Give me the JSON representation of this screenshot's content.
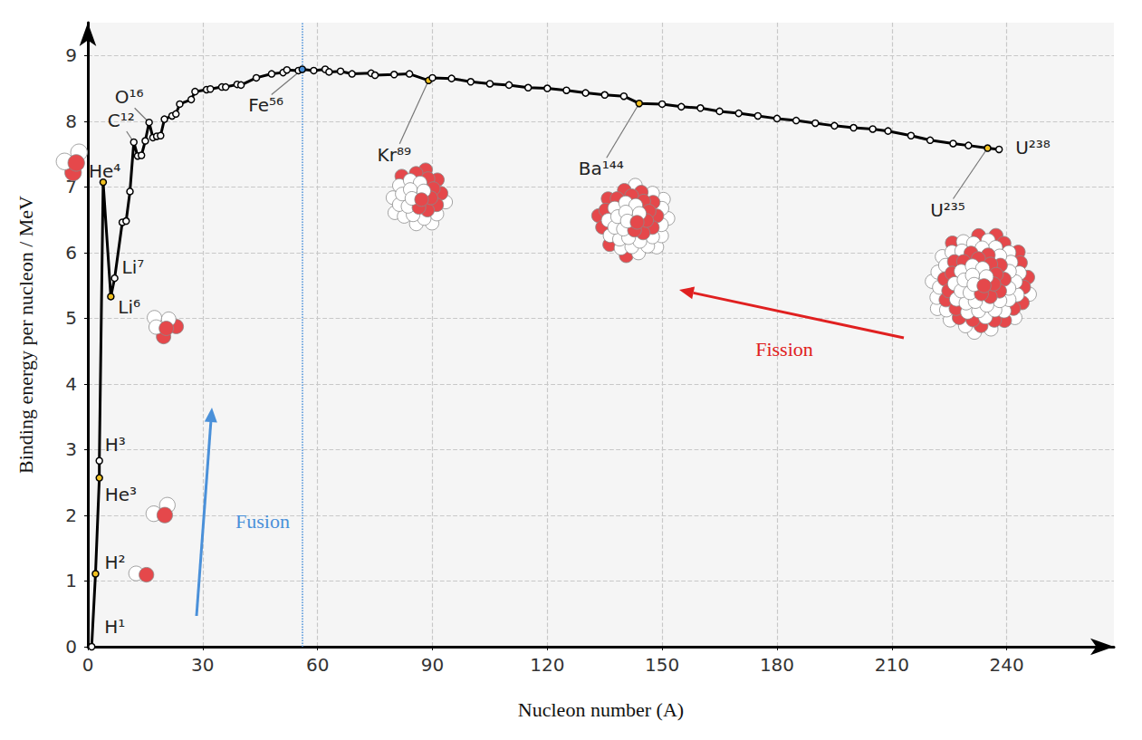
{
  "chart_data": {
    "type": "line",
    "x_label": "Nucleon number (A)",
    "y_label": "Binding energy per nucleon / MeV",
    "x": [
      1,
      2,
      3,
      3,
      4,
      6,
      7,
      9,
      10,
      11,
      12,
      13,
      14,
      15,
      16,
      17,
      18,
      19,
      20,
      22,
      23,
      24,
      27,
      28,
      31,
      32,
      35,
      36,
      39,
      40,
      44,
      48,
      51,
      52,
      55,
      56,
      59,
      62,
      63,
      66,
      69,
      74,
      75,
      80,
      84,
      89,
      90,
      95,
      100,
      105,
      110,
      115,
      120,
      125,
      130,
      135,
      140,
      144,
      150,
      155,
      160,
      165,
      170,
      175,
      180,
      185,
      190,
      195,
      200,
      205,
      209,
      215,
      220,
      226,
      230,
      235,
      238
    ],
    "values": [
      0,
      1.11,
      2.57,
      2.83,
      7.07,
      5.33,
      5.61,
      6.46,
      6.48,
      6.93,
      7.68,
      7.47,
      7.48,
      7.7,
      7.98,
      7.75,
      7.77,
      7.78,
      8.03,
      8.08,
      8.11,
      8.26,
      8.33,
      8.45,
      8.48,
      8.49,
      8.52,
      8.52,
      8.56,
      8.55,
      8.66,
      8.72,
      8.74,
      8.78,
      8.77,
      8.79,
      8.77,
      8.79,
      8.75,
      8.76,
      8.72,
      8.73,
      8.7,
      8.71,
      8.72,
      8.62,
      8.66,
      8.65,
      8.6,
      8.57,
      8.55,
      8.51,
      8.5,
      8.47,
      8.43,
      8.4,
      8.38,
      8.27,
      8.26,
      8.22,
      8.2,
      8.15,
      8.12,
      8.08,
      8.04,
      8.01,
      7.97,
      7.93,
      7.9,
      7.88,
      7.85,
      7.78,
      7.71,
      7.66,
      7.63,
      7.59,
      7.57
    ],
    "color": "#000000",
    "marker": "circle",
    "xlim": [
      0,
      268
    ],
    "ylim": [
      0,
      9.5
    ],
    "xticks": [
      0,
      30,
      60,
      90,
      120,
      150,
      180,
      210,
      240
    ],
    "yticks": [
      0,
      1,
      2,
      3,
      4,
      5,
      6,
      7,
      8,
      9
    ],
    "grid": true,
    "annotations": [
      {
        "label": "H¹",
        "x": 1,
        "y": 0
      },
      {
        "label": "H²",
        "x": 2,
        "y": 1.11,
        "color": "#f0c020"
      },
      {
        "label": "He³",
        "x": 3,
        "y": 2.57,
        "color": "#f0c020"
      },
      {
        "label": "H³",
        "x": 3,
        "y": 2.83
      },
      {
        "label": "He⁴",
        "x": 4,
        "y": 7.07,
        "color": "#f0c020"
      },
      {
        "label": "Li⁷",
        "x": 7,
        "y": 5.61
      },
      {
        "label": "Li⁶",
        "x": 6,
        "y": 5.33,
        "color": "#f0c020"
      },
      {
        "label": "C¹²",
        "x": 12,
        "y": 7.68
      },
      {
        "label": "O¹⁶",
        "x": 16,
        "y": 7.98
      },
      {
        "label": "Fe⁵⁶",
        "x": 56,
        "y": 8.79,
        "color": "#4a90d9"
      },
      {
        "label": "Kr⁸⁹",
        "x": 89,
        "y": 8.62,
        "color": "#f0c020"
      },
      {
        "label": "Ba¹⁴⁴",
        "x": 144,
        "y": 8.27,
        "color": "#f0c020"
      },
      {
        "label": "U²³⁵",
        "x": 235,
        "y": 7.59,
        "color": "#f0c020"
      },
      {
        "label": "U²³⁸",
        "x": 238,
        "y": 7.57
      }
    ],
    "reference_line": {
      "x": 56,
      "color": "#4a90d9",
      "line_style": "dotted"
    },
    "arrows": [
      {
        "label": "Fusion",
        "color": "#4a90d9"
      },
      {
        "label": "Fission",
        "color": "#e02020"
      }
    ]
  }
}
